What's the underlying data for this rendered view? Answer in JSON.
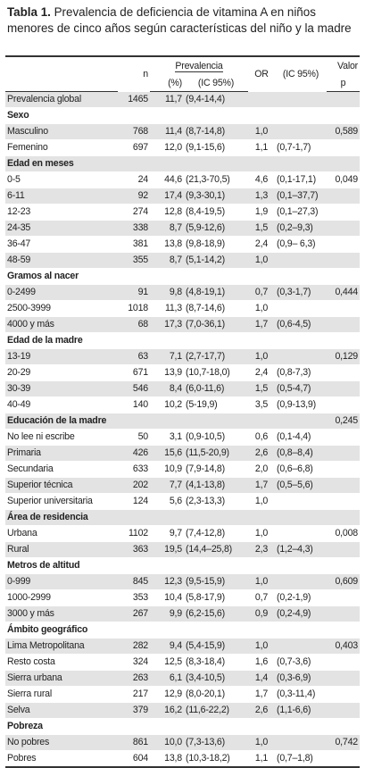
{
  "title": {
    "label": "Tabla 1.",
    "text": "Prevalencia de deficiencia de vitamina A en niños menores de cinco años según características del niño y la madre"
  },
  "header": {
    "n": "n",
    "prevalence": "Prevalencia",
    "pct": "(%)",
    "ci": "(IC 95%)",
    "or": "OR",
    "or_ci": "(IC 95%)",
    "p_1": "Valor",
    "p_2": "p"
  },
  "rows": [
    {
      "label": "Prevalencia global",
      "n": "1465",
      "pct": "11,7",
      "ci": "(9,4-14,4)"
    },
    {
      "section": "Sexo"
    },
    {
      "label": "Masculino",
      "n": "768",
      "pct": "11,4",
      "ci": "(8,7-14,8)",
      "or": "1,0",
      "p": "0,589"
    },
    {
      "label": "Femenino",
      "n": "697",
      "pct": "12,0",
      "ci": "(9,1-15,6)",
      "or": "1,1",
      "or_ci": "(0,7-1,7)"
    },
    {
      "section": "Edad en meses"
    },
    {
      "label": "0-5",
      "n": "24",
      "pct": "44,6",
      "ci": "(21,3-70,5)",
      "or": "4,6",
      "or_ci": "(0,1-17,1)",
      "p": "0,049"
    },
    {
      "label": "6-11",
      "n": "92",
      "pct": "17,4",
      "ci": "(9,3-30,1)",
      "or": "1,3",
      "or_ci": "(0,1–37,7)"
    },
    {
      "label": "12-23",
      "n": "274",
      "pct": "12,8",
      "ci": "(8,4-19,5)",
      "or": "1,9",
      "or_ci": "(0,1–27,3)"
    },
    {
      "label": "24-35",
      "n": "338",
      "pct": "8,7",
      "ci": "(5,9-12,6)",
      "or": "1,5",
      "or_ci": "(0,2–9,3)"
    },
    {
      "label": "36-47",
      "n": "381",
      "pct": "13,8",
      "ci": "(9,8-18,9)",
      "or": "2,4",
      "or_ci": "(0,9– 6,3)"
    },
    {
      "label": "48-59",
      "n": "355",
      "pct": "8,7",
      "ci": "(5,1-14,2)",
      "or": "1,0"
    },
    {
      "section": "Gramos al nacer"
    },
    {
      "label": "0-2499",
      "n": "91",
      "pct": "9,8",
      "ci": "(4,8-19,1)",
      "or": "0,7",
      "or_ci": "(0,3-1,7)",
      "p": "0,444"
    },
    {
      "label": "2500-3999",
      "n": "1018",
      "pct": "11,3",
      "ci": "(8,7-14,6)",
      "or": "1,0"
    },
    {
      "label": "4000 y más",
      "n": "68",
      "pct": "17,3",
      "ci": "(7,0-36,1)",
      "or": "1,7",
      "or_ci": "(0,6-4,5)"
    },
    {
      "section": "Edad de la madre"
    },
    {
      "label": "13-19",
      "n": "63",
      "pct": "7,1",
      "ci": "(2,7-17,7)",
      "or": "1,0",
      "p": "0,129"
    },
    {
      "label": "20-29",
      "n": "671",
      "pct": "13,9",
      "ci": "(10,7-18,0)",
      "or": "2,4",
      "or_ci": "(0,8-7,3)"
    },
    {
      "label": "30-39",
      "n": "546",
      "pct": "8,4",
      "ci": "(6,0-11,6)",
      "or": "1,5",
      "or_ci": "(0,5-4,7)"
    },
    {
      "label": "40-49",
      "n": "140",
      "pct": "10,2",
      "ci": "(5-19,9)",
      "or": "3,5",
      "or_ci": "(0,9-13,9)"
    },
    {
      "section": "Educación de la madre",
      "p": "0,245"
    },
    {
      "label": "No lee ni escribe",
      "n": "50",
      "pct": "3,1",
      "ci": "(0,9-10,5)",
      "or": "0,6",
      "or_ci": "(0,1-4,4)"
    },
    {
      "label": "Primaria",
      "n": "426",
      "pct": "15,6",
      "ci": "(11,5-20,9)",
      "or": "2,6",
      "or_ci": "(0,8–8,4)"
    },
    {
      "label": "Secundaria",
      "n": "633",
      "pct": "10,9",
      "ci": "(7,9-14,8)",
      "or": "2,0",
      "or_ci": "(0,6–6,8)"
    },
    {
      "label": "Superior técnica",
      "n": "202",
      "pct": "7,7",
      "ci": "(4,1-13,8)",
      "or": "1,7",
      "or_ci": "(0,5–5,6)"
    },
    {
      "label": "Superior universitaria",
      "n": "124",
      "pct": "5,6",
      "ci": "(2,3-13,3)",
      "or": "1,0"
    },
    {
      "section": "Área de residencia"
    },
    {
      "label": "Urbana",
      "n": "1102",
      "pct": "9,7",
      "ci": "(7,4-12,8)",
      "or": "1,0",
      "p": "0,008"
    },
    {
      "label": "Rural",
      "n": "363",
      "pct": "19,5",
      "ci": "(14,4–25,8)",
      "or": "2,3",
      "or_ci": "(1,2–4,3)"
    },
    {
      "section": "Metros de altitud"
    },
    {
      "label": "0-999",
      "n": "845",
      "pct": "12,3",
      "ci": "(9,5-15,9)",
      "or": "1,0",
      "p": "0,609"
    },
    {
      "label": "1000-2999",
      "n": "353",
      "pct": "10,4",
      "ci": "(5,8-17,9)",
      "or": "0,7",
      "or_ci": "(0,2-1,9)"
    },
    {
      "label": "3000 y más",
      "n": "267",
      "pct": "9,9",
      "ci": "(6,2-15,6)",
      "or": "0,9",
      "or_ci": "(0,2-4,9)"
    },
    {
      "section": "Ámbito geográfico"
    },
    {
      "label": "Lima Metropolitana",
      "n": "282",
      "pct": "9,4",
      "ci": "(5,4-15,9)",
      "or": "1,0",
      "p": "0,403"
    },
    {
      "label": "Resto costa",
      "n": "324",
      "pct": "12,5",
      "ci": "(8,3-18,4)",
      "or": "1,6",
      "or_ci": "(0,7-3,6)"
    },
    {
      "label": "Sierra urbana",
      "n": "263",
      "pct": "6,1",
      "ci": "(3,4-10,5)",
      "or": "1,4",
      "or_ci": "(0,3-6,9)"
    },
    {
      "label": "Sierra rural",
      "n": "217",
      "pct": "12,9",
      "ci": "(8,0-20,1)",
      "or": "1,7",
      "or_ci": "(0,3-11,4)"
    },
    {
      "label": "Selva",
      "n": "379",
      "pct": "16,2",
      "ci": "(11,6-22,2)",
      "or": "2,6",
      "or_ci": "(1,1-6,6)"
    },
    {
      "section": "Pobreza"
    },
    {
      "label": "No pobres",
      "n": "861",
      "pct": "10,0",
      "ci": "(7,3-13,6)",
      "or": "1,0",
      "p": "0,742"
    },
    {
      "label": "Pobres",
      "n": "604",
      "pct": "13,8",
      "ci": "(10,3-18,2)",
      "or": "1,1",
      "or_ci": "(0,7–1,8)"
    }
  ]
}
